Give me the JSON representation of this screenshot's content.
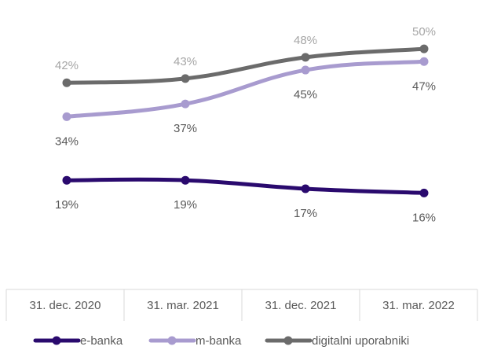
{
  "chart_data": {
    "type": "line",
    "title": "",
    "xlabel": "",
    "ylabel": "",
    "categories": [
      "31. dec. 2020",
      "31. mar. 2021",
      "31. dec. 2021",
      "31. mar. 2022"
    ],
    "ylim": [
      0,
      55
    ],
    "grid": false,
    "legend_position": "bottom",
    "series": [
      {
        "name": "e-banka",
        "color": "#2a0a6e",
        "label_color": "#595959",
        "values": [
          19,
          19,
          17,
          16
        ],
        "labels": [
          "19%",
          "19%",
          "17%",
          "16%"
        ],
        "label_side": [
          "below",
          "below",
          "below",
          "below"
        ]
      },
      {
        "name": "m-banka",
        "color": "#a89bcf",
        "label_color": "#595959",
        "values": [
          34,
          37,
          45,
          47
        ],
        "labels": [
          "34%",
          "37%",
          "45%",
          "47%"
        ],
        "label_side": [
          "below",
          "below",
          "below",
          "below"
        ]
      },
      {
        "name": "digitalni uporabniki",
        "color": "#6b6b6b",
        "label_color": "#a6a6a6",
        "values": [
          42,
          43,
          48,
          50
        ],
        "labels": [
          "42%",
          "43%",
          "48%",
          "50%"
        ],
        "label_side": [
          "above",
          "above",
          "above",
          "above"
        ]
      }
    ]
  }
}
